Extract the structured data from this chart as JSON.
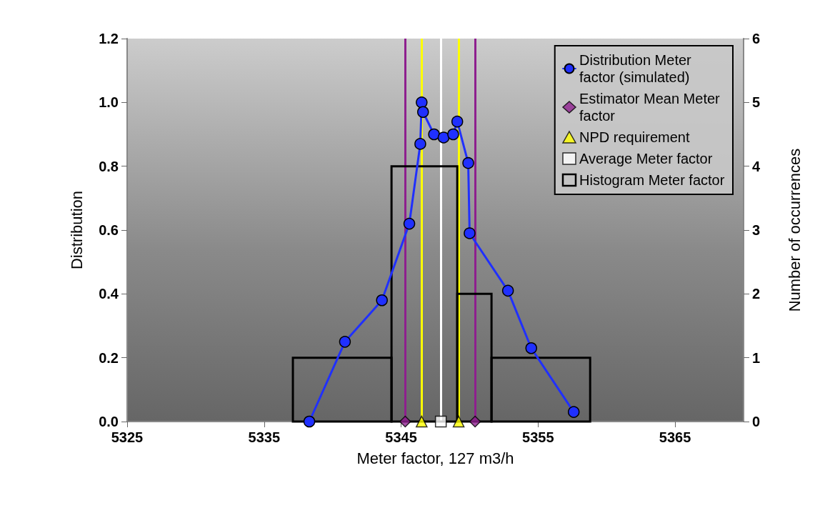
{
  "chart_data": {
    "type": "line",
    "xlabel": "Meter factor, 127 m3/h",
    "ylabel": "Distribution",
    "y2label": "Number of occurrences",
    "xlim": [
      5325,
      5370
    ],
    "xticks": [
      5325,
      5335,
      5345,
      5355,
      5365
    ],
    "ylim": [
      0,
      1.2
    ],
    "yticks": [
      {
        "value": 0,
        "label": "0.0"
      },
      {
        "value": 0.2,
        "label": "0.2"
      },
      {
        "value": 0.4,
        "label": "0.4"
      },
      {
        "value": 0.6,
        "label": "0.6"
      },
      {
        "value": 0.8,
        "label": "0.8"
      },
      {
        "value": 1,
        "label": "1.0"
      },
      {
        "value": 1.2,
        "label": "1.2"
      }
    ],
    "y2lim": [
      0,
      6
    ],
    "y2ticks": [
      0,
      1,
      2,
      3,
      4,
      5,
      6
    ],
    "grid": false,
    "legend": "top right",
    "series": [
      {
        "name": "Distribution Meter factor (simulated)",
        "type": "line",
        "color": "#2030ff",
        "marker": "circle",
        "x": [
          5338.3,
          5340.9,
          5343.6,
          5345.6,
          5346.4,
          5346.5,
          5346.6,
          5347.4,
          5348.1,
          5348.8,
          5349.1,
          5349.9,
          5350.0,
          5352.8,
          5354.5,
          5357.6
        ],
        "values": [
          0,
          0.25,
          0.38,
          0.62,
          0.87,
          1.0,
          0.97,
          0.9,
          0.89,
          0.9,
          0.94,
          0.81,
          0.59,
          0.41,
          0.23,
          0.03
        ]
      },
      {
        "name": "Estimator Mean Meter factor",
        "type": "scatter",
        "color": "#8e1f8e",
        "marker": "diamond",
        "x": [
          5345.3,
          5350.4
        ],
        "values": [
          0,
          0
        ]
      },
      {
        "name": "NPD requirement",
        "type": "scatter",
        "color": "#ffff00",
        "marker": "triangle",
        "x": [
          5346.5,
          5349.2
        ],
        "values": [
          0,
          0
        ]
      },
      {
        "name": "Average Meter factor",
        "type": "scatter",
        "color": "#ffffff",
        "marker": "square",
        "x": [
          5347.9
        ],
        "values": [
          0
        ]
      },
      {
        "name": "Histogram Meter factor",
        "type": "histogram",
        "color": "#000000",
        "axis": "y2",
        "bins": [
          5337.1,
          5344.3,
          5349.1,
          5351.6,
          5358.8
        ],
        "values": [
          1,
          4,
          2,
          1
        ]
      }
    ],
    "ref_lines": [
      {
        "axis": "x",
        "value": 5345.3,
        "color": "#8e1f8e"
      },
      {
        "axis": "x",
        "value": 5350.4,
        "color": "#8e1f8e"
      },
      {
        "axis": "x",
        "value": 5346.5,
        "color": "#ffff00"
      },
      {
        "axis": "x",
        "value": 5349.2,
        "color": "#ffff00"
      },
      {
        "axis": "x",
        "value": 5347.9,
        "color": "#ffffff"
      }
    ]
  }
}
